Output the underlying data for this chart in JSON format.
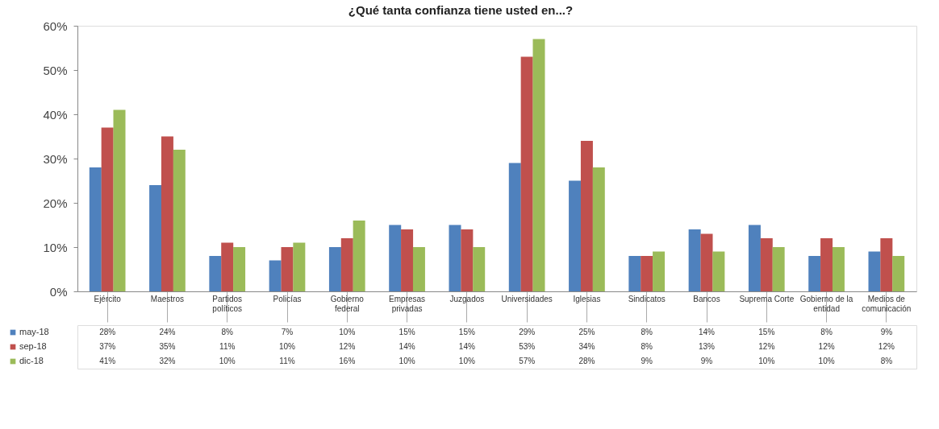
{
  "chart_data": {
    "type": "bar",
    "title": "¿Qué tanta confianza tiene usted en...?",
    "categories": [
      "Ejército",
      "Maestros",
      "Partidos\npolíticos",
      "Policías",
      "Gobierno\nfederal",
      "Empresas\nprivadas",
      "Juzgados",
      "Universidades",
      "Iglesias",
      "Sindicatos",
      "Bancos",
      "Suprema Corte",
      "Gobierno de la\nentidad",
      "Medios de\ncomunicación"
    ],
    "series": [
      {
        "name": "may-18",
        "color": "#4f81bd",
        "values": [
          28,
          24,
          8,
          7,
          10,
          15,
          15,
          29,
          25,
          8,
          14,
          15,
          8,
          9
        ],
        "value_labels": [
          "28%",
          "24%",
          "8%",
          "7%",
          "10%",
          "15%",
          "15%",
          "29%",
          "25%",
          "8%",
          "14%",
          "15%",
          "8%",
          "9%"
        ]
      },
      {
        "name": "sep-18",
        "color": "#c0504d",
        "values": [
          37,
          35,
          11,
          10,
          12,
          14,
          14,
          53,
          34,
          8,
          13,
          12,
          12,
          12
        ],
        "value_labels": [
          "37%",
          "35%",
          "11%",
          "10%",
          "12%",
          "14%",
          "14%",
          "53%",
          "34%",
          "8%",
          "13%",
          "12%",
          "12%",
          "12%"
        ]
      },
      {
        "name": "dic-18",
        "color": "#9bbb59",
        "values": [
          41,
          32,
          10,
          11,
          16,
          10,
          10,
          57,
          28,
          9,
          9,
          10,
          10,
          8
        ],
        "value_labels": [
          "41%",
          "32%",
          "10%",
          "11%",
          "16%",
          "10%",
          "10%",
          "57%",
          "28%",
          "9%",
          "9%",
          "10%",
          "10%",
          "8%"
        ]
      }
    ],
    "ylim": [
      0,
      60
    ],
    "yticks": [
      {
        "value": 0,
        "label": "0%"
      },
      {
        "value": 10,
        "label": "10%"
      },
      {
        "value": 20,
        "label": "20%"
      },
      {
        "value": 30,
        "label": "30%"
      },
      {
        "value": 40,
        "label": "40%"
      },
      {
        "value": 50,
        "label": "50%"
      },
      {
        "value": 60,
        "label": "60%"
      }
    ],
    "grid": false,
    "legend": "bottom left"
  }
}
